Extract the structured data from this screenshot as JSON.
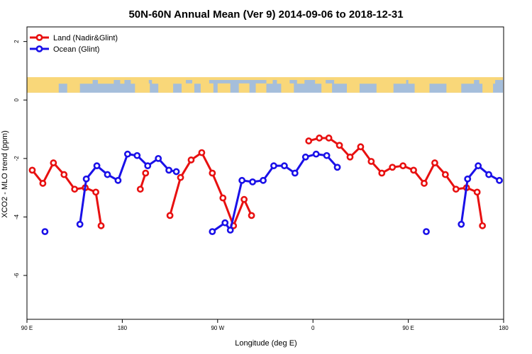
{
  "chart_data": {
    "type": "line",
    "title": "50N-60N Annual Mean (Ver 9)   2014-09-06 to 2018-12-31",
    "xlabel": "Longitude (deg E)",
    "ylabel": "XCO2 - MLO trend (ppm)",
    "xlim": [
      90,
      540
    ],
    "ylim": [
      -7.5,
      2.5
    ],
    "x_ticks": [
      {
        "value": 90,
        "label": "90 E"
      },
      {
        "value": 180,
        "label": "180"
      },
      {
        "value": 270,
        "label": "90 W"
      },
      {
        "value": 360,
        "label": "0"
      },
      {
        "value": 450,
        "label": "90 E"
      },
      {
        "value": 540,
        "label": "180"
      }
    ],
    "y_ticks": [
      {
        "value": 2,
        "label": "2"
      },
      {
        "value": 0,
        "label": "0"
      },
      {
        "value": -2,
        "label": "-2"
      },
      {
        "value": -4,
        "label": "-4"
      },
      {
        "value": -6,
        "label": "-6"
      }
    ],
    "map_band": {
      "y_from": 0.25,
      "y_to": 0.78,
      "ocean_color": "#a5bedb",
      "land_color": "#f9d779"
    },
    "legend": {
      "position": "top-left"
    },
    "series": [
      {
        "name": "Land (Nadir&Glint)",
        "color": "#e81010",
        "segments": [
          [
            [
              95,
              -2.4
            ],
            [
              105,
              -2.85
            ],
            [
              115,
              -2.15
            ],
            [
              125,
              -2.55
            ],
            [
              135,
              -3.05
            ],
            [
              145,
              -3.0
            ],
            [
              155,
              -3.15
            ],
            [
              160,
              -4.3
            ]
          ],
          [
            [
              197,
              -3.05
            ],
            [
              202,
              -2.5
            ]
          ],
          [
            [
              225,
              -3.95
            ],
            [
              235,
              -2.65
            ],
            [
              245,
              -2.05
            ],
            [
              255,
              -1.8
            ],
            [
              265,
              -2.5
            ],
            [
              275,
              -3.35
            ],
            [
              285,
              -4.3
            ],
            [
              295,
              -3.4
            ],
            [
              302,
              -3.95
            ]
          ],
          [
            [
              356,
              -1.4
            ],
            [
              366,
              -1.3
            ],
            [
              375,
              -1.3
            ],
            [
              385,
              -1.55
            ],
            [
              395,
              -1.95
            ],
            [
              405,
              -1.6
            ],
            [
              415,
              -2.1
            ],
            [
              425,
              -2.5
            ],
            [
              435,
              -2.3
            ],
            [
              445,
              -2.25
            ],
            [
              455,
              -2.4
            ],
            [
              465,
              -2.85
            ],
            [
              475,
              -2.15
            ],
            [
              485,
              -2.55
            ],
            [
              495,
              -3.05
            ],
            [
              505,
              -3.0
            ],
            [
              515,
              -3.15
            ],
            [
              520,
              -4.3
            ]
          ]
        ]
      },
      {
        "name": "Ocean (Glint)",
        "color": "#1a10e8",
        "segments": [
          [
            [
              107,
              -4.5
            ]
          ],
          [
            [
              140,
              -4.25
            ],
            [
              146,
              -2.7
            ],
            [
              156,
              -2.25
            ],
            [
              166,
              -2.55
            ],
            [
              176,
              -2.75
            ],
            [
              185,
              -1.85
            ],
            [
              194,
              -1.9
            ],
            [
              204,
              -2.25
            ],
            [
              214,
              -2.0
            ],
            [
              224,
              -2.4
            ],
            [
              231,
              -2.45
            ]
          ],
          [
            [
              265,
              -4.5
            ],
            [
              277,
              -4.2
            ],
            [
              282,
              -4.45
            ],
            [
              293,
              -2.75
            ],
            [
              303,
              -2.8
            ],
            [
              313,
              -2.75
            ],
            [
              323,
              -2.25
            ],
            [
              333,
              -2.25
            ],
            [
              343,
              -2.5
            ],
            [
              353,
              -1.95
            ],
            [
              363,
              -1.85
            ],
            [
              373,
              -1.9
            ],
            [
              383,
              -2.3
            ]
          ],
          [
            [
              467,
              -4.5
            ]
          ],
          [
            [
              500,
              -4.25
            ],
            [
              506,
              -2.7
            ],
            [
              516,
              -2.25
            ],
            [
              526,
              -2.55
            ],
            [
              536,
              -2.75
            ]
          ]
        ]
      }
    ]
  }
}
